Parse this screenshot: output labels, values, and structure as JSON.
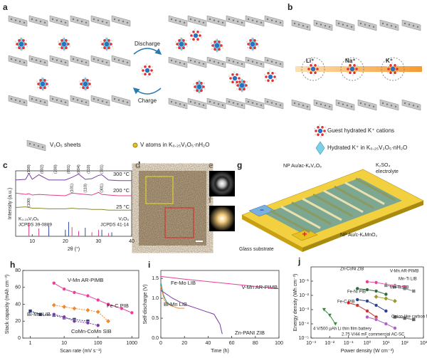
{
  "panels": {
    "a": {
      "label": "a",
      "discharge": "Discharge",
      "charge": "Charge"
    },
    "b": {
      "label": "b",
      "ions": [
        "Li⁺",
        "Na⁺",
        "K⁺"
      ]
    },
    "legend": {
      "sheets": "V₂O₅ sheets",
      "vatoms": "V atoms in K₀.₂₅V₂O₅·nH₂O",
      "guest": "Guest hydrated K⁺ cations",
      "hydrated": "Hydrated K⁺ in K₀.₂₅V₂O₅·nH₂O"
    },
    "d": {
      "label": "d"
    },
    "e": {
      "label": "e"
    },
    "f": {
      "label": "f"
    },
    "g": {
      "label": "g",
      "anode": "NP Au/ac-KₓV₂O₅",
      "electrolyte": [
        "K₂SO₄",
        "electrolyte"
      ],
      "cathode": "NP Au/c-KₓMnO₂",
      "substrate": "Glass substrate",
      "minus": "−",
      "plus": "+"
    }
  },
  "chart_data": [
    {
      "type": "line",
      "label": "c",
      "xlabel": "2θ (°)",
      "ylabel": "Intensity (a.u.)",
      "xlim": [
        5,
        40
      ],
      "xticks": [
        10,
        20,
        30,
        40
      ],
      "ylim": [
        0,
        10
      ],
      "x": [
        5,
        8,
        9,
        10,
        12,
        15,
        20,
        22,
        24,
        26,
        28,
        30,
        31,
        33,
        36,
        40
      ],
      "series": [
        {
          "name": "300 °C",
          "color": "#7b3fa0",
          "values": [
            8.6,
            8.7,
            9.6,
            8.7,
            9.4,
            8.6,
            8.6,
            9.0,
            9.5,
            8.7,
            8.8,
            9.3,
            9.4,
            8.6,
            8.5,
            8.5
          ],
          "peaks": [
            {
              "label": "(100)",
              "x": 9
            },
            {
              "label": "(002)",
              "x": 13
            },
            {
              "label": "(200)",
              "x": 17
            },
            {
              "label": "(001)",
              "x": 21
            },
            {
              "label": "(004)",
              "x": 24
            },
            {
              "label": "(110)",
              "x": 27
            },
            {
              "label": "(301)",
              "x": 31
            }
          ]
        },
        {
          "name": "200 °C",
          "color": "#e0408a",
          "values": [
            6.6,
            6.4,
            6.5,
            6.3,
            6.4,
            6.3,
            6.2,
            6.6,
            6.5,
            6.4,
            6.3,
            6.7,
            6.4,
            6.3,
            6.2,
            6.2
          ],
          "peaks": [
            {
              "label": "(101)",
              "x": 22
            },
            {
              "label": "(110)",
              "x": 26
            },
            {
              "label": "(301)",
              "x": 31
            }
          ]
        },
        {
          "name": "25 °C",
          "color": "#8a8a30",
          "values": [
            4.4,
            4.5,
            4.4,
            4.3,
            4.3,
            4.2,
            4.2,
            4.3,
            4.2,
            4.2,
            4.1,
            4.1,
            4.1,
            4.0,
            4.0,
            4.0
          ],
          "peaks": [
            {
              "label": "(100)",
              "x": 9
            }
          ]
        }
      ],
      "references": [
        {
          "name": "K₀.₂₅V₂O₅",
          "source": "JCPDS 39-0889",
          "color": "#e0408a",
          "x": [
            9,
            12,
            15,
            22,
            24,
            28,
            30,
            33
          ],
          "values": [
            2.0,
            1.2,
            0.6,
            1.4,
            0.8,
            0.6,
            1.0,
            0.5
          ]
        },
        {
          "name": "V₂O₅",
          "source": "JCPDS 41-14",
          "color": "#3050b0",
          "x": [
            15,
            20,
            21,
            26,
            31,
            34
          ],
          "values": [
            1.6,
            1.0,
            2.2,
            1.3,
            1.0,
            0.6
          ]
        }
      ]
    },
    {
      "type": "line",
      "label": "h",
      "xlabel": "Scan rate (mV s⁻¹)",
      "ylabel": "Stack capacity (mAh cm⁻³)",
      "xlog": true,
      "xlim": [
        0.6,
        1600
      ],
      "xticks": [
        1,
        10,
        100,
        1000
      ],
      "ylim": [
        0,
        80
      ],
      "yticks": [
        0,
        20,
        40,
        60,
        80
      ],
      "series": [
        {
          "name": "V-Mn AR-PIMB",
          "color": "#e8409a",
          "marker": "circle",
          "x": [
            5,
            10,
            20,
            50,
            100,
            200,
            500,
            1000
          ],
          "values": [
            65,
            58,
            54,
            50,
            45,
            40,
            35,
            30
          ]
        },
        {
          "name": "Bi-Mn LIB",
          "color": "#2c3e7a",
          "marker": "square",
          "x": [
            1,
            2,
            5,
            10,
            20,
            50
          ],
          "values": [
            32,
            28,
            27,
            24,
            22,
            20
          ]
        },
        {
          "name": "Fe-C PIB",
          "color": "#f08a30",
          "marker": "diamond",
          "x": [
            5,
            10,
            20,
            50,
            100,
            200
          ],
          "values": [
            39,
            37,
            35,
            33,
            31,
            20
          ]
        },
        {
          "name": "CoMn-CoMn SIB",
          "color": "#7a3aa0",
          "marker": "circle",
          "x": [
            5,
            10,
            20,
            50,
            100
          ],
          "values": [
            28,
            25,
            20,
            18,
            15
          ]
        }
      ]
    },
    {
      "type": "line",
      "label": "i",
      "xlabel": "Time (h)",
      "ylabel": "Self-discharge (V)",
      "xlim": [
        0,
        100
      ],
      "xticks": [
        0,
        20,
        40,
        60,
        80,
        100
      ],
      "ylim": [
        0,
        1.7
      ],
      "yticks": [
        {
          "value": 0,
          "label": "0.0"
        },
        0.5,
        {
          "value": 1,
          "label": "1.0"
        },
        1.5
      ],
      "series": [
        {
          "name": "V-Mn AR-PIMB",
          "color": "#e8409a",
          "x": [
            0,
            20,
            40,
            60,
            80,
            100
          ],
          "values": [
            1.55,
            1.48,
            1.42,
            1.36,
            1.3,
            1.24
          ]
        },
        {
          "name": "Fe-Mo LIB",
          "color": "#2a9a9a",
          "x": [
            0,
            2,
            5,
            10
          ],
          "values": [
            1.4,
            1.1,
            0.9,
            0.8
          ]
        },
        {
          "name": "Bi-Mn LIB",
          "color": "#f08a30",
          "x": [
            0,
            3,
            6,
            10,
            15,
            20
          ],
          "values": [
            1.3,
            0.95,
            0.85,
            0.8,
            0.75,
            0.75
          ]
        },
        {
          "name": "Zn-PANI ZIB",
          "color": "#7a3aa0",
          "x": [
            0,
            10,
            20,
            30,
            40,
            45,
            50,
            52
          ],
          "values": [
            1.2,
            1.0,
            0.85,
            0.75,
            0.65,
            0.6,
            0.35,
            0.1
          ]
        }
      ]
    },
    {
      "type": "line",
      "label": "j",
      "xlabel": "Power density (W cm⁻³)",
      "ylabel": "Energy density (Wh cm⁻³)",
      "xlog": true,
      "ylog": true,
      "xlim": [
        0.001,
        1000
      ],
      "ylim": [
        1e-05,
        1
      ],
      "xticks": [
        {
          "value": 0.001,
          "label": "10⁻³"
        },
        {
          "value": 0.01,
          "label": "10⁻²"
        },
        {
          "value": 0.1,
          "label": "10⁻¹"
        },
        {
          "value": 1,
          "label": "10⁰"
        },
        {
          "value": 10,
          "label": "10¹"
        },
        {
          "value": 100,
          "label": "10²"
        },
        {
          "value": 1000,
          "label": "10³"
        }
      ],
      "yticks": [
        {
          "value": 1e-05,
          "label": "10⁻⁵"
        },
        {
          "value": 0.0001,
          "label": "10⁻⁴"
        },
        {
          "value": 0.001,
          "label": "10⁻³"
        },
        {
          "value": 0.01,
          "label": "10⁻²"
        },
        {
          "value": 0.1,
          "label": "10⁻¹"
        }
      ],
      "series": [
        {
          "name": "V-Mn AR-PIMB",
          "color": "#e8409a",
          "marker": "circle",
          "x": [
            1,
            3,
            10,
            30,
            100
          ],
          "values": [
            0.09,
            0.08,
            0.06,
            0.05,
            0.04
          ]
        },
        {
          "name": "Zn-CoNi ZIB",
          "color": "#2e6b3a",
          "marker": "circle",
          "x": [
            0.3,
            1,
            3,
            10
          ],
          "values": [
            0.03,
            0.025,
            0.02,
            0.012
          ]
        },
        {
          "name": "Mn-Ti LIB",
          "color": "#888888",
          "marker": "square",
          "x": [
            10,
            30,
            100,
            300
          ],
          "values": [
            0.05,
            0.04,
            0.03,
            0.02
          ]
        },
        {
          "name": "Mn-Ti SIB",
          "color": "#9a9a30",
          "marker": "diamond",
          "x": [
            3,
            10,
            30
          ],
          "values": [
            0.008,
            0.006,
            0.004
          ]
        },
        {
          "name": "Fe-Ni PIB",
          "color": "#2c3e9a",
          "marker": "circle",
          "x": [
            0.3,
            1,
            3,
            10
          ],
          "values": [
            0.005,
            0.004,
            0.002,
            0.0008
          ]
        },
        {
          "name": "Fe-C PIB",
          "color": "#d03030",
          "marker": "circle",
          "x": [
            0.1,
            0.3,
            1,
            3
          ],
          "values": [
            0.003,
            0.002,
            0.0008,
            0.0003
          ]
        },
        {
          "name": "4 V/500 µAh Li thin film battery",
          "color": "#2e8a3a",
          "marker": "triangle",
          "x": [
            0.005,
            0.01,
            0.02
          ],
          "values": [
            0.001,
            0.0004,
            0.0001
          ]
        },
        {
          "name": "2.75 V/44 mF commercial AC-SC",
          "color": "#b060c0",
          "marker": "circle",
          "x": [
            1,
            3,
            10,
            30
          ],
          "values": [
            0.0003,
            0.0002,
            0.0001,
            5e-05
          ]
        },
        {
          "name": "Onion-like carbon MSC",
          "color": "#666666",
          "marker": "square",
          "x": [
            30,
            100,
            300
          ],
          "values": [
            0.0003,
            0.00025,
            0.0002
          ]
        }
      ]
    }
  ]
}
